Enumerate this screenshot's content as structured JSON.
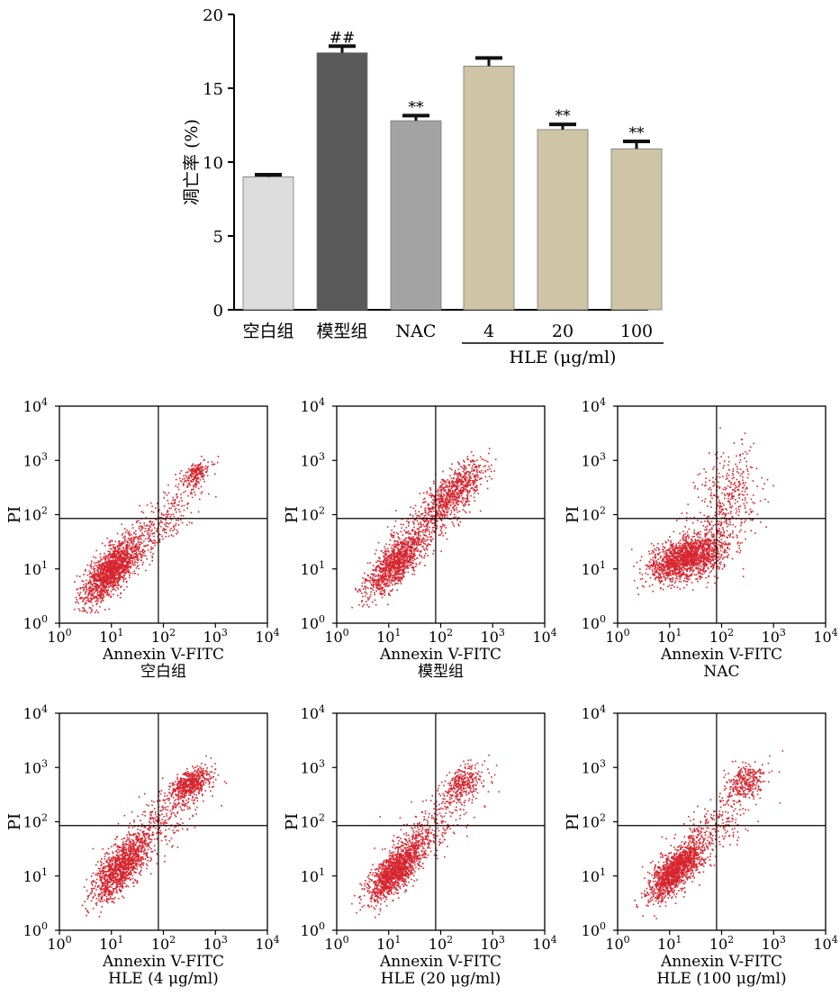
{
  "chart_data": [
    {
      "type": "bar",
      "ylabel": "凋亡率 (%)",
      "ylim": [
        0,
        20
      ],
      "yticks": [
        "0",
        "5",
        "10",
        "15",
        "20"
      ],
      "categories": [
        "空白组",
        "模型组",
        "NAC",
        "4",
        "20",
        "100"
      ],
      "values": [
        9.0,
        17.4,
        12.8,
        16.5,
        12.2,
        10.9
      ],
      "errors": [
        0.15,
        0.45,
        0.35,
        0.55,
        0.35,
        0.5
      ],
      "annotations": [
        "",
        "##",
        "**",
        "",
        "**",
        "**"
      ],
      "colors": [
        "#dcdcdc",
        "#595959",
        "#a3a3a3",
        "#cfc4a6",
        "#cfc4a6",
        "#cfc4a6"
      ],
      "group_label": "HLE (μg/ml)",
      "group_members": [
        3,
        4,
        5
      ]
    },
    {
      "type": "scatter",
      "scale": "log",
      "xlabel": "Annexin V-FITC",
      "ylabel": "PI",
      "xlim": [
        1,
        10000
      ],
      "ylim": [
        1,
        10000
      ],
      "tick_values": [
        1,
        10,
        100,
        1000,
        10000
      ],
      "tick_base": "10",
      "tick_exponents": [
        "0",
        "1",
        "2",
        "3",
        "4"
      ],
      "gate": {
        "x": 80,
        "y": 85
      },
      "dot_color": "#d6252f",
      "panels": [
        {
          "title": "空白组",
          "clusters": [
            {
              "cx": 1.0,
              "cy": 1.0,
              "sx": 0.28,
              "sy": 0.3,
              "rho": 0.72,
              "n": 1500
            },
            {
              "cx": 2.6,
              "cy": 2.75,
              "sx": 0.14,
              "sy": 0.12,
              "rho": 0.5,
              "n": 200
            },
            {
              "cx": 1.8,
              "cy": 1.7,
              "sx": 0.45,
              "sy": 0.45,
              "rho": 0.8,
              "n": 320
            }
          ]
        },
        {
          "title": "模型组",
          "clusters": [
            {
              "cx": 1.1,
              "cy": 1.1,
              "sx": 0.27,
              "sy": 0.28,
              "rho": 0.7,
              "n": 1050
            },
            {
              "cx": 2.25,
              "cy": 2.45,
              "sx": 0.3,
              "sy": 0.28,
              "rho": 0.75,
              "n": 700
            },
            {
              "cx": 1.7,
              "cy": 1.8,
              "sx": 0.45,
              "sy": 0.45,
              "rho": 0.8,
              "n": 350
            }
          ]
        },
        {
          "title": "NAC",
          "clusters": [
            {
              "cx": 1.3,
              "cy": 1.2,
              "sx": 0.35,
              "sy": 0.2,
              "rho": 0.45,
              "n": 1500
            },
            {
              "cx": 2.1,
              "cy": 2.3,
              "sx": 0.3,
              "sy": 0.45,
              "rho": 0.3,
              "n": 350
            },
            {
              "cx": 1.6,
              "cy": 1.4,
              "sx": 0.45,
              "sy": 0.35,
              "rho": 0.5,
              "n": 250
            }
          ]
        },
        {
          "title": "HLE (4 μg/ml)",
          "clusters": [
            {
              "cx": 1.15,
              "cy": 1.15,
              "sx": 0.27,
              "sy": 0.3,
              "rho": 0.72,
              "n": 1100
            },
            {
              "cx": 2.5,
              "cy": 2.7,
              "sx": 0.2,
              "sy": 0.15,
              "rho": 0.55,
              "n": 550
            },
            {
              "cx": 1.8,
              "cy": 1.9,
              "sx": 0.45,
              "sy": 0.45,
              "rho": 0.78,
              "n": 380
            }
          ]
        },
        {
          "title": "HLE (20 μg/ml)",
          "clusters": [
            {
              "cx": 1.1,
              "cy": 1.1,
              "sx": 0.27,
              "sy": 0.28,
              "rho": 0.72,
              "n": 1300
            },
            {
              "cx": 2.4,
              "cy": 2.7,
              "sx": 0.2,
              "sy": 0.17,
              "rho": 0.5,
              "n": 300
            },
            {
              "cx": 1.75,
              "cy": 1.85,
              "sx": 0.45,
              "sy": 0.45,
              "rho": 0.78,
              "n": 350
            }
          ]
        },
        {
          "title": "HLE (100 μg/ml)",
          "clusters": [
            {
              "cx": 1.1,
              "cy": 1.1,
              "sx": 0.26,
              "sy": 0.27,
              "rho": 0.72,
              "n": 1350
            },
            {
              "cx": 2.45,
              "cy": 2.75,
              "sx": 0.2,
              "sy": 0.16,
              "rho": 0.5,
              "n": 280
            },
            {
              "cx": 1.75,
              "cy": 1.85,
              "sx": 0.45,
              "sy": 0.45,
              "rho": 0.78,
              "n": 320
            }
          ]
        }
      ]
    }
  ]
}
